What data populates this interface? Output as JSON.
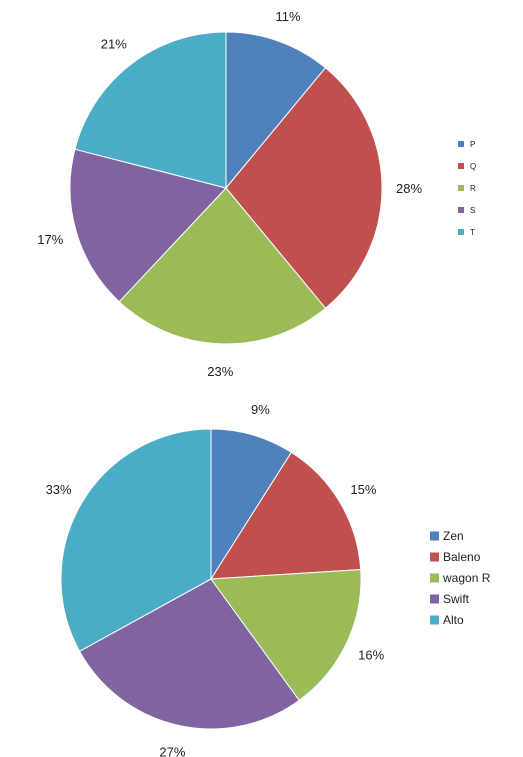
{
  "chart_data": [
    {
      "type": "pie",
      "categories": [
        "P",
        "Q",
        "R",
        "S",
        "T"
      ],
      "values": [
        11,
        28,
        23,
        17,
        21
      ],
      "value_labels": [
        "11%",
        "28%",
        "23%",
        "17%",
        "21%"
      ],
      "colors": [
        "#4F81BD",
        "#C0504D",
        "#9BBB59",
        "#8064A2",
        "#4BACC6"
      ],
      "start": "12 o'clock",
      "direction": "clockwise",
      "legend_position": "right"
    },
    {
      "type": "pie",
      "categories": [
        "Zen",
        "Baleno",
        "wagon R",
        "Swift",
        "Alto"
      ],
      "values": [
        9,
        15,
        16,
        27,
        33
      ],
      "value_labels": [
        "9%",
        "15%",
        "16%",
        "27%",
        "33%"
      ],
      "colors": [
        "#4F81BD",
        "#C0504D",
        "#9BBB59",
        "#8064A2",
        "#4BACC6"
      ],
      "start": "12 o'clock",
      "direction": "clockwise",
      "legend_position": "right"
    }
  ]
}
